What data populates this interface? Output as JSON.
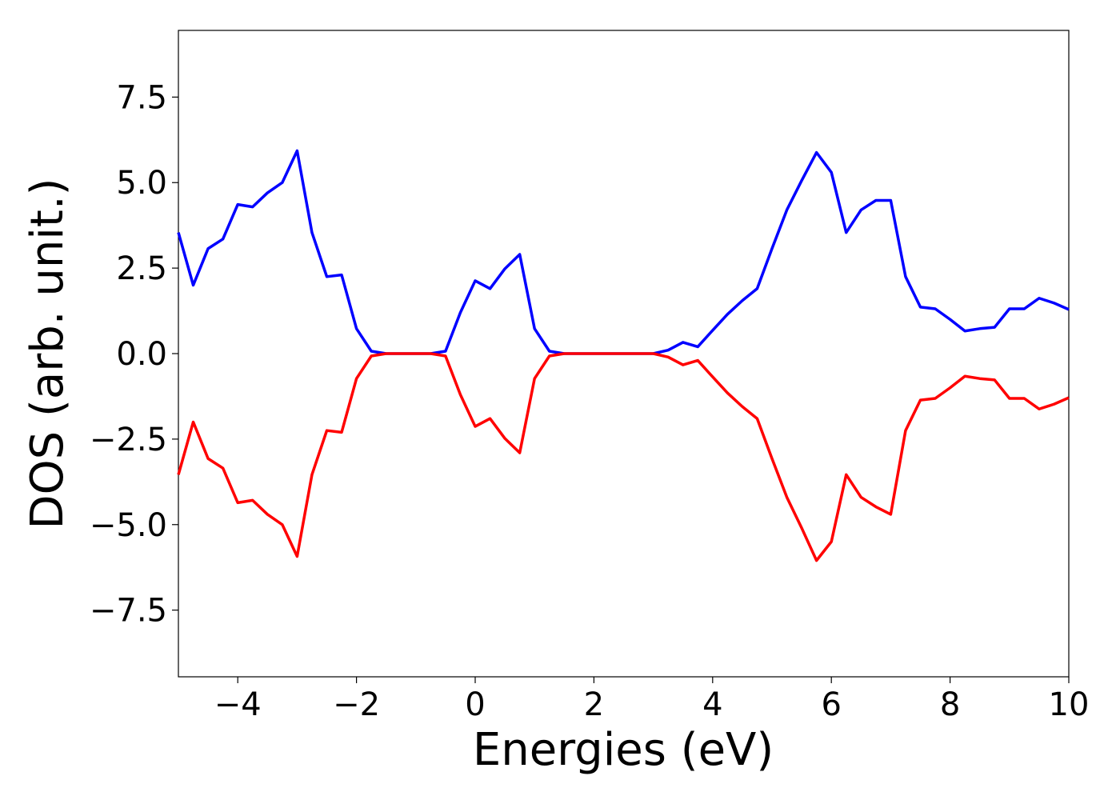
{
  "chart_data": {
    "type": "line",
    "xlabel": "Energies (eV)",
    "ylabel": "DOS (arb. unit.)",
    "xlim": [
      -5,
      10
    ],
    "ylim": [
      -9.45,
      9.45
    ],
    "xticks": [
      {
        "value": -4,
        "label": "−4"
      },
      {
        "value": -2,
        "label": "−2"
      },
      0,
      2,
      4,
      6,
      8,
      10
    ],
    "yticks": [
      {
        "value": -7.5,
        "label": "−7.5"
      },
      {
        "value": -5,
        "label": "−5.0"
      },
      {
        "value": -2.5,
        "label": "−2.5"
      },
      {
        "value": 0,
        "label": "0.0"
      },
      2.5,
      {
        "value": 5,
        "label": "5.0"
      },
      7.5
    ],
    "x": [
      -5,
      -4.75,
      -4.5,
      -4.25,
      -4,
      -3.75,
      -3.5,
      -3.25,
      -3,
      -2.75,
      -2.5,
      -2.25,
      -2,
      -1.75,
      -1.5,
      -1.25,
      -1,
      -0.75,
      -0.5,
      -0.25,
      0,
      0.25,
      0.5,
      0.75,
      1,
      1.25,
      1.5,
      1.75,
      2,
      2.25,
      2.5,
      2.75,
      3,
      3.25,
      3.5,
      3.75,
      4,
      4.25,
      4.5,
      4.75,
      5,
      5.25,
      5.5,
      5.75,
      6,
      6.25,
      6.5,
      6.75,
      7,
      7.25,
      7.5,
      7.75,
      8,
      8.25,
      8.5,
      8.75,
      9,
      9.25,
      9.5,
      9.75,
      10
    ],
    "series": [
      {
        "color": "#0000ff",
        "values": [
          3.54,
          2.0,
          3.07,
          3.35,
          4.36,
          4.29,
          4.7,
          5.0,
          5.93,
          3.54,
          2.25,
          2.3,
          0.73,
          0.07,
          0,
          0,
          0,
          0,
          0.07,
          1.2,
          2.13,
          1.9,
          2.48,
          2.9,
          0.73,
          0.07,
          0,
          0,
          0,
          0,
          0,
          0,
          0,
          0.1,
          0.33,
          0.2,
          0.68,
          1.15,
          1.55,
          1.9,
          3.07,
          4.2,
          5.06,
          5.88,
          5.3,
          3.54,
          4.2,
          4.48,
          4.48,
          2.25,
          1.36,
          1.31,
          1.0,
          0.66,
          0.73,
          0.77,
          1.31,
          1.31,
          1.62,
          1.48,
          1.29
        ]
      },
      {
        "color": "#ff0000",
        "values": [
          -3.54,
          -2.0,
          -3.07,
          -3.35,
          -4.36,
          -4.29,
          -4.7,
          -5.0,
          -5.93,
          -3.54,
          -2.25,
          -2.3,
          -0.73,
          -0.07,
          0,
          0,
          0,
          0,
          -0.07,
          -1.2,
          -2.13,
          -1.9,
          -2.48,
          -2.9,
          -0.73,
          -0.07,
          0,
          0,
          0,
          0,
          0,
          0,
          0,
          -0.1,
          -0.33,
          -0.2,
          -0.68,
          -1.15,
          -1.55,
          -1.9,
          -3.07,
          -4.2,
          -5.1,
          -6.05,
          -5.5,
          -3.54,
          -4.2,
          -4.48,
          -4.7,
          -2.25,
          -1.36,
          -1.31,
          -1.0,
          -0.66,
          -0.73,
          -0.77,
          -1.31,
          -1.31,
          -1.62,
          -1.48,
          -1.29
        ]
      }
    ]
  }
}
